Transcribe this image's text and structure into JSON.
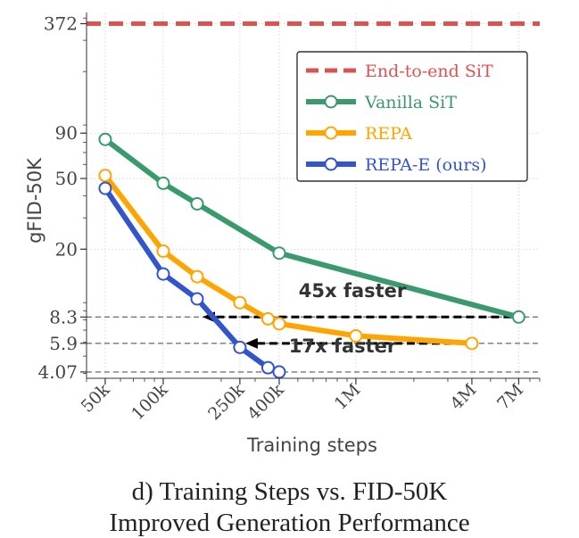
{
  "chart_data": {
    "type": "line",
    "xscale": "log",
    "yscale": "log",
    "xlabel": "Training steps",
    "ylabel": "gFID-50K",
    "xlim": [
      40000,
      9000000
    ],
    "ylim": [
      3.75,
      430
    ],
    "xticks": [
      {
        "value": 50000,
        "label": "50k"
      },
      {
        "value": 100000,
        "label": "100k"
      },
      {
        "value": 250000,
        "label": "250k"
      },
      {
        "value": 400000,
        "label": "400k"
      },
      {
        "value": 1000000,
        "label": "1M"
      },
      {
        "value": 4000000,
        "label": "4M"
      },
      {
        "value": 7000000,
        "label": "7M"
      }
    ],
    "yticks": [
      {
        "value": 372,
        "label": "372"
      },
      {
        "value": 90,
        "label": "90"
      },
      {
        "value": 50,
        "label": "50"
      },
      {
        "value": 20,
        "label": "20"
      },
      {
        "value": 8.3,
        "label": "8.3"
      },
      {
        "value": 5.9,
        "label": "5.9"
      },
      {
        "value": 4.07,
        "label": "4.07"
      }
    ],
    "hlines": [
      8.3,
      5.9,
      4.07
    ],
    "series": [
      {
        "name": "End-to-end SiT",
        "color": "#d9534f",
        "style": "dashed-hline",
        "value": 372
      },
      {
        "name": "Vanilla SiT",
        "color": "#3a9a6b",
        "x": [
          50000,
          100000,
          150000,
          400000,
          7000000
        ],
        "y": [
          83,
          47,
          36,
          19,
          8.3
        ]
      },
      {
        "name": "REPA",
        "color": "#ffa500",
        "x": [
          50000,
          100000,
          150000,
          250000,
          350000,
          400000,
          1000000,
          4000000
        ],
        "y": [
          52,
          19.5,
          14,
          10,
          8.1,
          7.6,
          6.5,
          5.9
        ]
      },
      {
        "name": "REPA-E (ours)",
        "color": "#3355cc",
        "x": [
          50000,
          100000,
          150000,
          250000,
          350000,
          400000
        ],
        "y": [
          44,
          14.5,
          10.5,
          5.6,
          4.3,
          4.07
        ]
      }
    ],
    "annotations": [
      {
        "text": "45x faster",
        "y": 8.3,
        "from_x": 7000000,
        "to_x": 150000
      },
      {
        "text": "17x faster",
        "y": 5.9,
        "from_x": 4000000,
        "to_x": 250000
      }
    ],
    "legend_position": "top-right"
  },
  "caption": {
    "line1": "d) Training Steps vs. FID-50K",
    "line2": "Improved Generation Performance"
  }
}
